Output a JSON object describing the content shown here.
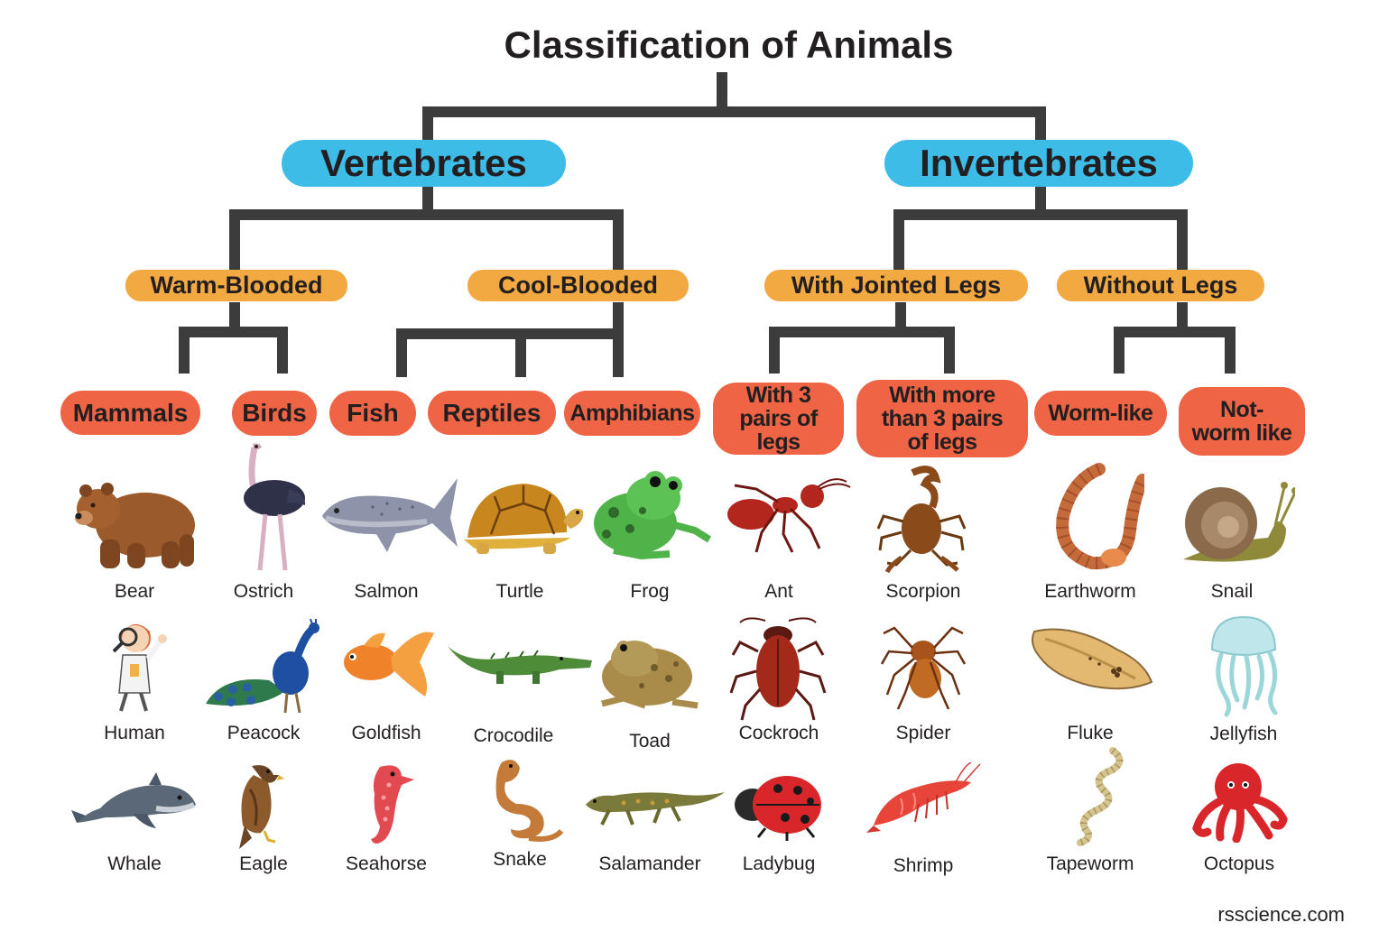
{
  "title": "Classification of Animals",
  "credit": "rsscience.com",
  "colors": {
    "line": "#3c3c3c",
    "group": "#3dbce8",
    "subgroup": "#f3a941",
    "class": "#ee6445",
    "text": "#231f20"
  },
  "groups": {
    "vertebrates": "Vertebrates",
    "invertebrates": "Invertebrates"
  },
  "subgroups": {
    "warm": "Warm-Blooded",
    "cool": "Cool-Blooded",
    "jointed": "With Jointed Legs",
    "nolegs": "Without Legs"
  },
  "classes": {
    "mammals": "Mammals",
    "birds": "Birds",
    "fish": "Fish",
    "reptiles": "Reptiles",
    "amphibians": "Amphibians",
    "three_pairs": "With 3 pairs of legs",
    "more_pairs": "With more than 3 pairs of legs",
    "wormlike": "Worm-like",
    "notworm": "Not-worm like"
  },
  "animals": {
    "bear": {
      "label": "Bear",
      "icon": "bear-icon"
    },
    "human": {
      "label": "Human",
      "icon": "human-icon"
    },
    "whale": {
      "label": "Whale",
      "icon": "whale-icon"
    },
    "ostrich": {
      "label": "Ostrich",
      "icon": "ostrich-icon"
    },
    "peacock": {
      "label": "Peacock",
      "icon": "peacock-icon"
    },
    "eagle": {
      "label": "Eagle",
      "icon": "eagle-icon"
    },
    "salmon": {
      "label": "Salmon",
      "icon": "salmon-icon"
    },
    "goldfish": {
      "label": "Goldfish",
      "icon": "goldfish-icon"
    },
    "seahorse": {
      "label": "Seahorse",
      "icon": "seahorse-icon"
    },
    "turtle": {
      "label": "Turtle",
      "icon": "turtle-icon"
    },
    "crocodile": {
      "label": "Crocodile",
      "icon": "crocodile-icon"
    },
    "snake": {
      "label": "Snake",
      "icon": "snake-icon"
    },
    "frog": {
      "label": "Frog",
      "icon": "frog-icon"
    },
    "toad": {
      "label": "Toad",
      "icon": "toad-icon"
    },
    "salamander": {
      "label": "Salamander",
      "icon": "salamander-icon"
    },
    "ant": {
      "label": "Ant",
      "icon": "ant-icon"
    },
    "cockroach": {
      "label": "Cockroch",
      "icon": "cockroach-icon"
    },
    "ladybug": {
      "label": "Ladybug",
      "icon": "ladybug-icon"
    },
    "scorpion": {
      "label": "Scorpion",
      "icon": "scorpion-icon"
    },
    "spider": {
      "label": "Spider",
      "icon": "spider-icon"
    },
    "shrimp": {
      "label": "Shrimp",
      "icon": "shrimp-icon"
    },
    "earthworm": {
      "label": "Earthworm",
      "icon": "earthworm-icon"
    },
    "fluke": {
      "label": "Fluke",
      "icon": "fluke-icon"
    },
    "tapeworm": {
      "label": "Tapeworm",
      "icon": "tapeworm-icon"
    },
    "snail": {
      "label": "Snail",
      "icon": "snail-icon"
    },
    "jellyfish": {
      "label": "Jellyfish",
      "icon": "jellyfish-icon"
    },
    "octopus": {
      "label": "Octopus",
      "icon": "octopus-icon"
    }
  }
}
